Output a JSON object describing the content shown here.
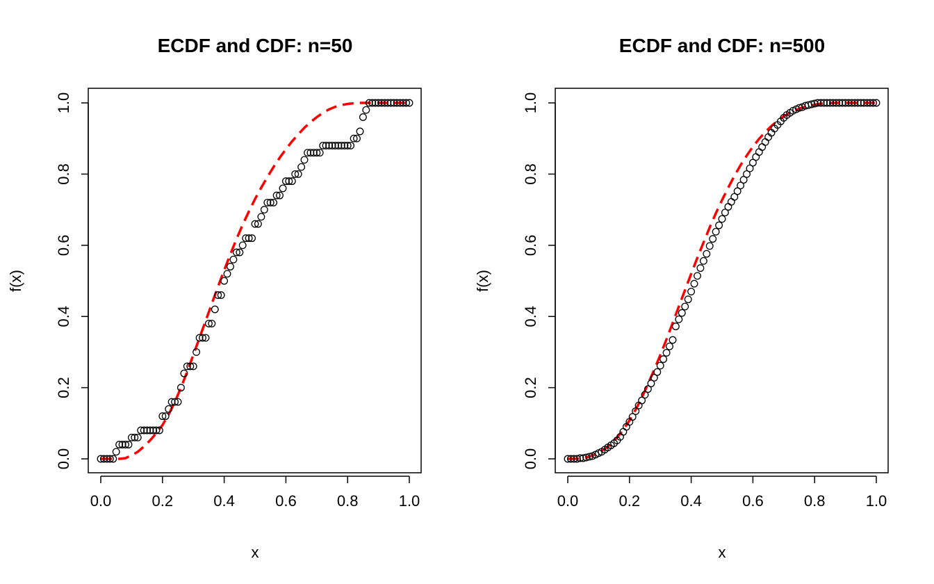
{
  "chart_data": [
    {
      "type": "scatter",
      "title": "ECDF and CDF: n=50",
      "xlabel": "x",
      "ylabel": "f(x)",
      "xlim": [
        0.0,
        1.0
      ],
      "ylim": [
        0.0,
        1.0
      ],
      "x_ticks": [
        "0.0",
        "0.2",
        "0.4",
        "0.6",
        "0.8",
        "1.0"
      ],
      "y_ticks": [
        "0.0",
        "0.2",
        "0.4",
        "0.6",
        "0.8",
        "1.0"
      ],
      "grid": false,
      "legend": "none",
      "series": [
        {
          "kind": "ecdf-points",
          "marker": "open-circle",
          "color": "#000000",
          "x": [
            0.0,
            0.01,
            0.02,
            0.03,
            0.04,
            0.05,
            0.06,
            0.07,
            0.08,
            0.09,
            0.1,
            0.11,
            0.12,
            0.13,
            0.14,
            0.15,
            0.16,
            0.17,
            0.18,
            0.19,
            0.2,
            0.21,
            0.22,
            0.23,
            0.24,
            0.25,
            0.26,
            0.27,
            0.28,
            0.29,
            0.3,
            0.31,
            0.32,
            0.33,
            0.34,
            0.35,
            0.36,
            0.37,
            0.38,
            0.39,
            0.4,
            0.41,
            0.42,
            0.43,
            0.44,
            0.45,
            0.46,
            0.47,
            0.48,
            0.49,
            0.5,
            0.51,
            0.52,
            0.53,
            0.54,
            0.55,
            0.56,
            0.57,
            0.58,
            0.59,
            0.6,
            0.61,
            0.62,
            0.63,
            0.64,
            0.65,
            0.66,
            0.67,
            0.68,
            0.69,
            0.7,
            0.71,
            0.72,
            0.73,
            0.74,
            0.75,
            0.76,
            0.77,
            0.78,
            0.79,
            0.8,
            0.81,
            0.82,
            0.83,
            0.84,
            0.85,
            0.86,
            0.87,
            0.88,
            0.89,
            0.9,
            0.91,
            0.92,
            0.93,
            0.94,
            0.95,
            0.96,
            0.97,
            0.98,
            0.99,
            1.0
          ],
          "y": [
            0.0,
            0.0,
            0.0,
            0.0,
            0.0,
            0.02,
            0.04,
            0.04,
            0.04,
            0.04,
            0.06,
            0.06,
            0.06,
            0.08,
            0.08,
            0.08,
            0.08,
            0.08,
            0.08,
            0.08,
            0.12,
            0.12,
            0.14,
            0.16,
            0.16,
            0.16,
            0.2,
            0.24,
            0.26,
            0.26,
            0.26,
            0.3,
            0.34,
            0.34,
            0.34,
            0.38,
            0.38,
            0.42,
            0.46,
            0.46,
            0.5,
            0.52,
            0.54,
            0.56,
            0.58,
            0.58,
            0.6,
            0.62,
            0.62,
            0.62,
            0.66,
            0.66,
            0.68,
            0.7,
            0.72,
            0.72,
            0.72,
            0.74,
            0.74,
            0.76,
            0.78,
            0.78,
            0.78,
            0.8,
            0.8,
            0.82,
            0.84,
            0.86,
            0.86,
            0.86,
            0.86,
            0.86,
            0.88,
            0.88,
            0.88,
            0.88,
            0.88,
            0.88,
            0.88,
            0.88,
            0.88,
            0.88,
            0.9,
            0.9,
            0.92,
            0.96,
            0.98,
            1.0,
            1.0,
            1.0,
            1.0,
            1.0,
            1.0,
            1.0,
            1.0,
            1.0,
            1.0,
            1.0,
            1.0,
            1.0,
            1.0
          ]
        },
        {
          "kind": "true-cdf",
          "style": "dashed",
          "color": "#ff0000",
          "x": [
            0.0,
            0.02,
            0.04,
            0.06,
            0.08,
            0.1,
            0.12,
            0.14,
            0.16,
            0.18,
            0.2,
            0.22,
            0.24,
            0.26,
            0.28,
            0.3,
            0.32,
            0.34,
            0.36,
            0.38,
            0.4,
            0.42,
            0.44,
            0.46,
            0.48,
            0.5,
            0.52,
            0.54,
            0.56,
            0.58,
            0.6,
            0.62,
            0.64,
            0.66,
            0.68,
            0.7,
            0.72,
            0.74,
            0.76,
            0.78,
            0.8,
            0.82,
            0.84,
            0.86,
            0.88,
            0.9,
            0.92,
            0.94,
            0.96,
            0.98,
            1.0
          ],
          "y": [
            0.0,
            0.0,
            0.0,
            0.0,
            0.002,
            0.01,
            0.02,
            0.035,
            0.052,
            0.072,
            0.095,
            0.125,
            0.16,
            0.2,
            0.245,
            0.292,
            0.34,
            0.388,
            0.436,
            0.484,
            0.53,
            0.575,
            0.618,
            0.658,
            0.695,
            0.73,
            0.762,
            0.792,
            0.82,
            0.846,
            0.87,
            0.892,
            0.912,
            0.93,
            0.946,
            0.96,
            0.972,
            0.982,
            0.989,
            0.994,
            0.997,
            0.999,
            1.0,
            1.0,
            1.0,
            1.0,
            1.0,
            1.0,
            1.0,
            1.0,
            1.0
          ]
        }
      ]
    },
    {
      "type": "scatter",
      "title": "ECDF and CDF: n=500",
      "xlabel": "x",
      "ylabel": "f(x)",
      "xlim": [
        0.0,
        1.0
      ],
      "ylim": [
        0.0,
        1.0
      ],
      "x_ticks": [
        "0.0",
        "0.2",
        "0.4",
        "0.6",
        "0.8",
        "1.0"
      ],
      "y_ticks": [
        "0.0",
        "0.2",
        "0.4",
        "0.6",
        "0.8",
        "1.0"
      ],
      "grid": false,
      "legend": "none",
      "series": [
        {
          "kind": "ecdf-points",
          "marker": "open-circle",
          "color": "#000000",
          "x": [
            0.0,
            0.01,
            0.02,
            0.03,
            0.04,
            0.05,
            0.06,
            0.07,
            0.08,
            0.09,
            0.1,
            0.11,
            0.12,
            0.13,
            0.14,
            0.15,
            0.16,
            0.17,
            0.18,
            0.19,
            0.2,
            0.21,
            0.22,
            0.23,
            0.24,
            0.25,
            0.26,
            0.27,
            0.28,
            0.29,
            0.3,
            0.31,
            0.32,
            0.33,
            0.34,
            0.35,
            0.36,
            0.37,
            0.38,
            0.39,
            0.4,
            0.41,
            0.42,
            0.43,
            0.44,
            0.45,
            0.46,
            0.47,
            0.48,
            0.49,
            0.5,
            0.51,
            0.52,
            0.53,
            0.54,
            0.55,
            0.56,
            0.57,
            0.58,
            0.59,
            0.6,
            0.61,
            0.62,
            0.63,
            0.64,
            0.65,
            0.66,
            0.67,
            0.68,
            0.69,
            0.7,
            0.71,
            0.72,
            0.73,
            0.74,
            0.75,
            0.76,
            0.77,
            0.78,
            0.79,
            0.8,
            0.81,
            0.82,
            0.83,
            0.84,
            0.85,
            0.86,
            0.87,
            0.88,
            0.89,
            0.9,
            0.91,
            0.92,
            0.93,
            0.94,
            0.95,
            0.96,
            0.97,
            0.98,
            0.99,
            1.0
          ],
          "y": [
            0.0,
            0.0,
            0.0,
            0.0,
            0.002,
            0.002,
            0.004,
            0.006,
            0.008,
            0.012,
            0.016,
            0.02,
            0.026,
            0.032,
            0.038,
            0.044,
            0.052,
            0.062,
            0.076,
            0.09,
            0.104,
            0.118,
            0.134,
            0.15,
            0.164,
            0.18,
            0.196,
            0.212,
            0.228,
            0.244,
            0.262,
            0.28,
            0.298,
            0.316,
            0.334,
            0.372,
            0.392,
            0.41,
            0.428,
            0.448,
            0.47,
            0.492,
            0.514,
            0.536,
            0.556,
            0.576,
            0.598,
            0.618,
            0.638,
            0.656,
            0.674,
            0.692,
            0.708,
            0.722,
            0.736,
            0.752,
            0.768,
            0.784,
            0.8,
            0.816,
            0.832,
            0.848,
            0.862,
            0.876,
            0.89,
            0.904,
            0.916,
            0.928,
            0.938,
            0.948,
            0.958,
            0.966,
            0.972,
            0.978,
            0.982,
            0.986,
            0.988,
            0.992,
            0.994,
            0.996,
            0.998,
            1.0,
            1.0,
            1.0,
            1.0,
            1.0,
            1.0,
            1.0,
            1.0,
            1.0,
            1.0,
            1.0,
            1.0,
            1.0,
            1.0,
            1.0,
            1.0,
            1.0,
            1.0,
            1.0,
            1.0
          ]
        },
        {
          "kind": "true-cdf",
          "style": "dashed",
          "color": "#ff0000",
          "x": [
            0.0,
            0.02,
            0.04,
            0.06,
            0.08,
            0.1,
            0.12,
            0.14,
            0.16,
            0.18,
            0.2,
            0.22,
            0.24,
            0.26,
            0.28,
            0.3,
            0.32,
            0.34,
            0.36,
            0.38,
            0.4,
            0.42,
            0.44,
            0.46,
            0.48,
            0.5,
            0.52,
            0.54,
            0.56,
            0.58,
            0.6,
            0.62,
            0.64,
            0.66,
            0.68,
            0.7,
            0.72,
            0.74,
            0.76,
            0.78,
            0.8,
            0.82,
            0.84,
            0.86,
            0.88,
            0.9,
            0.92,
            0.94,
            0.96,
            0.98,
            1.0
          ],
          "y": [
            0.0,
            0.0,
            0.001,
            0.004,
            0.009,
            0.017,
            0.028,
            0.042,
            0.06,
            0.082,
            0.108,
            0.138,
            0.172,
            0.21,
            0.25,
            0.292,
            0.336,
            0.382,
            0.428,
            0.474,
            0.52,
            0.565,
            0.608,
            0.65,
            0.69,
            0.727,
            0.762,
            0.795,
            0.825,
            0.852,
            0.877,
            0.899,
            0.918,
            0.935,
            0.95,
            0.962,
            0.972,
            0.98,
            0.987,
            0.992,
            0.995,
            0.998,
            0.999,
            1.0,
            1.0,
            1.0,
            1.0,
            1.0,
            1.0,
            1.0,
            1.0
          ]
        }
      ]
    }
  ]
}
